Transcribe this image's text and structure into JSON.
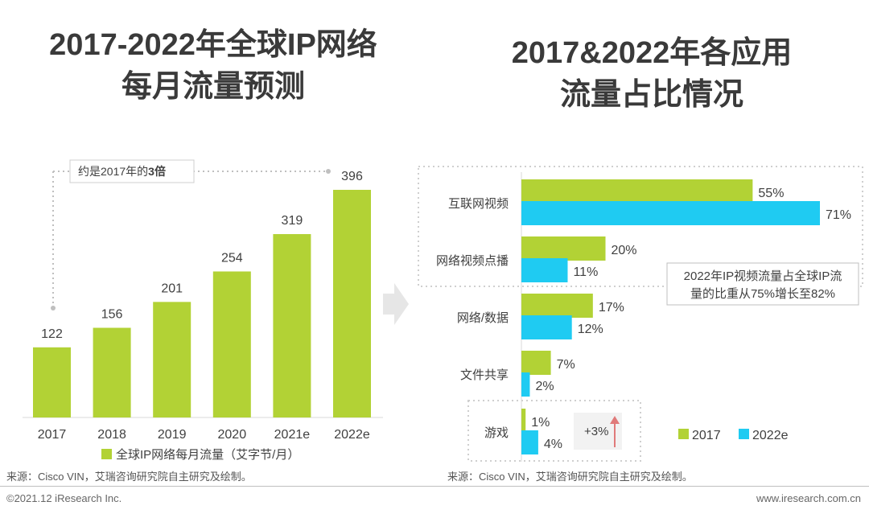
{
  "colors": {
    "green": "#b2d235",
    "blue": "#1fcbf2",
    "arrow": "#e07a7a"
  },
  "left": {
    "title_line1": "2017-2022年全球IP网络",
    "title_line2": "每月流量预测",
    "annotation_prefix": "约是2017年的",
    "annotation_bold": "3倍",
    "source": "来源：Cisco VIN，艾瑞咨询研究院自主研究及绘制。"
  },
  "right": {
    "title_line1": "2017&2022年各应用",
    "title_line2": "流量占比情况",
    "callout_line1": "2022年IP视频流量占全球IP流",
    "callout_line2": "量的比重从75%增长至82%",
    "growth_label": "+3%",
    "source": "来源：Cisco VIN，艾瑞咨询研究院自主研究及绘制。"
  },
  "footer": {
    "copyright": "©2021.12 iResearch Inc.",
    "website": "www.iresearch.com.cn"
  },
  "chart_data": [
    {
      "type": "bar",
      "title": "2017-2022年全球IP网络每月流量预测",
      "categories": [
        "2017",
        "2018",
        "2019",
        "2020",
        "2021e",
        "2022e"
      ],
      "series": [
        {
          "name": "全球IP网络每月流量（艾字节/月）",
          "values": [
            122,
            156,
            201,
            254,
            319,
            396
          ]
        }
      ],
      "value_labels": [
        "122",
        "156",
        "201",
        "254",
        "319",
        "396"
      ],
      "ylim": [
        0,
        420
      ],
      "legend": "bottom"
    },
    {
      "type": "bar",
      "orientation": "horizontal",
      "title": "2017&2022年各应用流量占比情况",
      "categories": [
        "互联网视频",
        "网络视频点播",
        "网络/数据",
        "文件共享",
        "游戏"
      ],
      "series": [
        {
          "name": "2017",
          "values": [
            55,
            20,
            17,
            7,
            1
          ],
          "labels": [
            "55%",
            "20%",
            "17%",
            "7%",
            "1%"
          ]
        },
        {
          "name": "2022e",
          "values": [
            71,
            11,
            12,
            2,
            4
          ],
          "labels": [
            "71%",
            "11%",
            "12%",
            "2%",
            "4%"
          ]
        }
      ],
      "xlim": [
        0,
        100
      ],
      "legend": "bottom-right"
    }
  ]
}
